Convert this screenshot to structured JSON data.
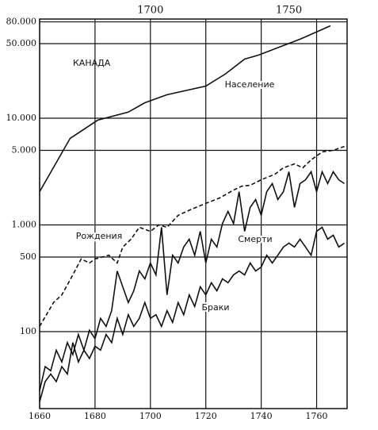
{
  "chart_data": {
    "type": "line",
    "log_scale": true,
    "grid": true,
    "annotation": "КАНАДА",
    "xlim": [
      1660,
      1771
    ],
    "xticks": [
      1660,
      1680,
      1700,
      1720,
      1740,
      1760
    ],
    "top_xticks": [
      1700,
      1750
    ],
    "ylim": [
      19,
      85000
    ],
    "yticks": [
      {
        "value": 80000,
        "label": "80.000"
      },
      {
        "value": 50000,
        "label": "50.000"
      },
      {
        "value": 10000,
        "label": "10.000"
      },
      {
        "value": 5000,
        "label": "5.000"
      },
      {
        "value": 1000,
        "label": "1.000"
      },
      500,
      100
    ],
    "series": [
      {
        "name": "Население",
        "color": "#111",
        "dashed": false,
        "x": [
          1660,
          1671,
          1681,
          1692,
          1698,
          1706,
          1720,
          1727,
          1734,
          1739,
          1754,
          1765
        ],
        "values": [
          2050,
          6470,
          9600,
          11400,
          13970,
          16600,
          20000,
          25900,
          35800,
          39000,
          55000,
          73500
        ]
      },
      {
        "name": "Рождения",
        "color": "#111",
        "dashed": true,
        "x": [
          1660,
          1665,
          1668,
          1672,
          1675,
          1678,
          1680,
          1685,
          1688,
          1690,
          1693,
          1696,
          1700,
          1703,
          1706,
          1710,
          1715,
          1720,
          1725,
          1730,
          1733,
          1736,
          1740,
          1745,
          1748,
          1752,
          1755,
          1758,
          1762,
          1766,
          1770
        ],
        "values": [
          112,
          187,
          221,
          340,
          480,
          440,
          480,
          520,
          440,
          620,
          735,
          950,
          870,
          1000,
          950,
          1230,
          1410,
          1590,
          1790,
          2120,
          2310,
          2350,
          2650,
          2990,
          3430,
          3730,
          3430,
          4070,
          4830,
          5000,
          5440
        ]
      },
      {
        "name": "Смерти",
        "color": "#111",
        "dashed": false,
        "x": [
          1660,
          1662,
          1664,
          1666,
          1668,
          1670,
          1672,
          1674,
          1676,
          1678,
          1680,
          1682,
          1684,
          1686,
          1688,
          1690,
          1692,
          1694,
          1696,
          1698,
          1700,
          1702,
          1704,
          1706,
          1708,
          1710,
          1712,
          1714,
          1716,
          1718,
          1720,
          1722,
          1724,
          1726,
          1728,
          1730,
          1732,
          1734,
          1736,
          1738,
          1740,
          1742,
          1744,
          1746,
          1748,
          1750,
          1752,
          1754,
          1756,
          1758,
          1760,
          1762,
          1764,
          1766,
          1768,
          1770
        ],
        "values": [
          28,
          47,
          43,
          67,
          52,
          79,
          61,
          94,
          67,
          103,
          86,
          133,
          112,
          157,
          370,
          263,
          187,
          241,
          370,
          312,
          440,
          340,
          950,
          221,
          520,
          440,
          620,
          735,
          520,
          870,
          440,
          735,
          620,
          1030,
          1340,
          1030,
          2050,
          870,
          1460,
          1730,
          1230,
          2050,
          2440,
          1730,
          2050,
          3150,
          1460,
          2440,
          2650,
          3150,
          2050,
          3150,
          2440,
          3150,
          2650,
          2440
        ]
      },
      {
        "name": "Браки",
        "color": "#111",
        "dashed": false,
        "x": [
          1660,
          1662,
          1664,
          1666,
          1668,
          1670,
          1672,
          1674,
          1676,
          1678,
          1680,
          1682,
          1684,
          1686,
          1688,
          1690,
          1692,
          1694,
          1696,
          1698,
          1700,
          1702,
          1704,
          1706,
          1708,
          1710,
          1712,
          1714,
          1716,
          1718,
          1720,
          1722,
          1724,
          1726,
          1728,
          1730,
          1732,
          1734,
          1736,
          1738,
          1740,
          1742,
          1744,
          1746,
          1748,
          1750,
          1752,
          1754,
          1756,
          1758,
          1760,
          1762,
          1764,
          1766,
          1768,
          1770
        ],
        "values": [
          22,
          34,
          40,
          34,
          47,
          40,
          79,
          52,
          67,
          56,
          73,
          67,
          94,
          79,
          133,
          94,
          144,
          112,
          133,
          187,
          133,
          144,
          112,
          157,
          122,
          187,
          144,
          221,
          172,
          263,
          221,
          287,
          241,
          312,
          287,
          340,
          370,
          340,
          440,
          370,
          403,
          520,
          440,
          520,
          620,
          675,
          620,
          735,
          620,
          520,
          870,
          950,
          735,
          800,
          620,
          675
        ]
      }
    ]
  }
}
